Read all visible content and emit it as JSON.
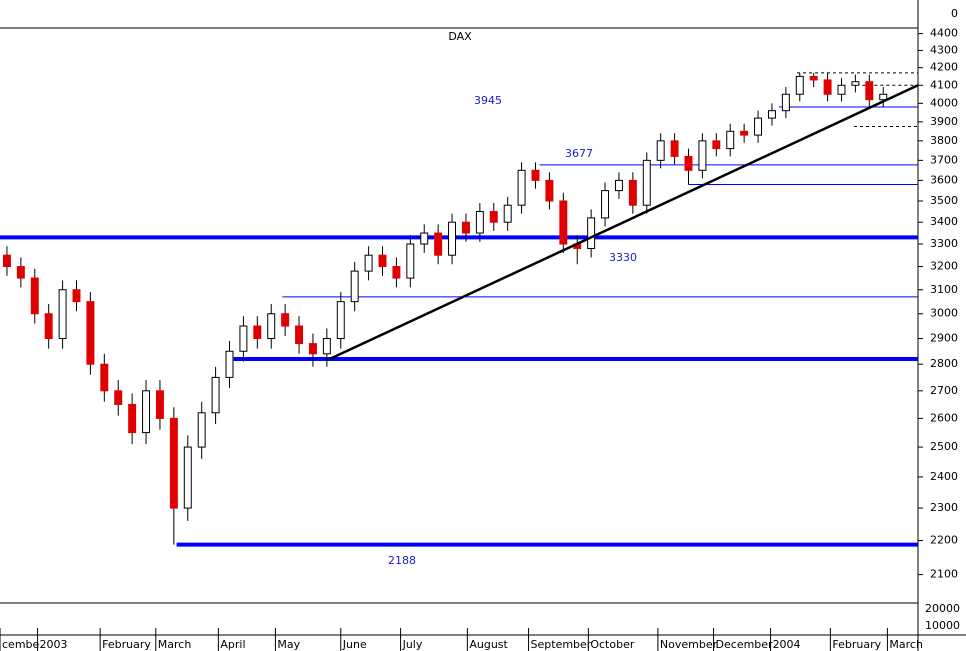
{
  "chart_data": {
    "type": "candlestick",
    "title": "DAX",
    "log_scale": true,
    "ylim": [
      2020,
      4434
    ],
    "yticks": [
      2100,
      2200,
      2300,
      2400,
      2500,
      2600,
      2700,
      2800,
      2900,
      3000,
      3100,
      3200,
      3300,
      3400,
      3500,
      3600,
      3700,
      3800,
      3900,
      4000,
      4100,
      4200,
      4300,
      4400
    ],
    "xlim": [
      -0.5,
      65.5
    ],
    "xticks": [
      {
        "value": -0.5,
        "label": "cembe"
      },
      {
        "value": 2.2,
        "label": "2003"
      },
      {
        "value": 6.7,
        "label": "February"
      },
      {
        "value": 10.7,
        "label": "March"
      },
      {
        "value": 15.2,
        "label": "April"
      },
      {
        "value": 19.3,
        "label": "May"
      },
      {
        "value": 24,
        "label": "June"
      },
      {
        "value": 28.3,
        "label": "July"
      },
      {
        "value": 33.1,
        "label": "August"
      },
      {
        "value": 37.5,
        "label": "September"
      },
      {
        "value": 41.8,
        "label": "October"
      },
      {
        "value": 46.8,
        "label": "November"
      },
      {
        "value": 50.8,
        "label": "December"
      },
      {
        "value": 54.9,
        "label": "2004"
      },
      {
        "value": 59.2,
        "label": "February"
      },
      {
        "value": 63.3,
        "label": "March"
      }
    ],
    "up_color": "#ffffff",
    "down_color": "#e00000",
    "open": [
      3250,
      3200,
      3150,
      3000,
      2900,
      3100,
      3050,
      2800,
      2700,
      2650,
      2550,
      2700,
      2600,
      2300,
      2500,
      2620,
      2750,
      2850,
      2950,
      2900,
      3000,
      2950,
      2880,
      2840,
      2900,
      3050,
      3180,
      3250,
      3200,
      3150,
      3300,
      3350,
      3250,
      3400,
      3350,
      3450,
      3400,
      3480,
      3650,
      3600,
      3500,
      3300,
      3280,
      3420,
      3550,
      3600,
      3480,
      3700,
      3800,
      3720,
      3650,
      3800,
      3760,
      3850,
      3830,
      3920,
      3960,
      4050,
      4150,
      4130,
      4050,
      4100,
      4120,
      4020
    ],
    "high": [
      3290,
      3240,
      3190,
      3040,
      3140,
      3140,
      3090,
      2840,
      2740,
      2690,
      2740,
      2740,
      2640,
      2540,
      2660,
      2790,
      2890,
      2990,
      2990,
      3040,
      3040,
      2990,
      2920,
      2940,
      3090,
      3220,
      3290,
      3290,
      3240,
      3340,
      3390,
      3390,
      3440,
      3440,
      3490,
      3490,
      3520,
      3690,
      3690,
      3640,
      3540,
      3340,
      3460,
      3590,
      3640,
      3640,
      3740,
      3840,
      3840,
      3760,
      3840,
      3840,
      3890,
      3890,
      3960,
      4000,
      4090,
      4170,
      4170,
      4170,
      4140,
      4160,
      4160,
      4090
    ],
    "low": [
      3160,
      3110,
      2960,
      2860,
      2860,
      3010,
      2760,
      2660,
      2610,
      2510,
      2510,
      2560,
      2188,
      2260,
      2460,
      2580,
      2710,
      2810,
      2860,
      2860,
      2910,
      2840,
      2790,
      2790,
      2860,
      3010,
      3140,
      3160,
      3110,
      3110,
      3260,
      3210,
      3210,
      3310,
      3310,
      3360,
      3360,
      3440,
      3560,
      3460,
      3260,
      3210,
      3240,
      3380,
      3510,
      3440,
      3440,
      3660,
      3680,
      3580,
      3610,
      3720,
      3720,
      3790,
      3790,
      3880,
      3920,
      4010,
      4090,
      4010,
      4010,
      4060,
      3980,
      3980
    ],
    "close": [
      3200,
      3150,
      3000,
      2900,
      3100,
      3050,
      2800,
      2700,
      2650,
      2550,
      2700,
      2600,
      2300,
      2500,
      2620,
      2750,
      2850,
      2950,
      2900,
      3000,
      2950,
      2880,
      2840,
      2900,
      3050,
      3180,
      3250,
      3200,
      3150,
      3300,
      3350,
      3250,
      3400,
      3350,
      3450,
      3400,
      3480,
      3650,
      3600,
      3500,
      3300,
      3280,
      3420,
      3550,
      3600,
      3480,
      3700,
      3800,
      3720,
      3650,
      3800,
      3760,
      3850,
      3830,
      3920,
      3960,
      4050,
      4150,
      4130,
      4050,
      4100,
      4120,
      4020,
      4050
    ],
    "levels": [
      {
        "value": 3330,
        "start": -0.5,
        "style": "thick",
        "color": "#0000ff"
      },
      {
        "value": 2820,
        "start": 16.3,
        "style": "thick",
        "color": "#0000ff"
      },
      {
        "value": 2188,
        "start": 12.2,
        "style": "thick",
        "color": "#0000ff"
      },
      {
        "value": 3677,
        "start": 38.3,
        "style": "thin",
        "color": "#0000ff"
      },
      {
        "value": 3580,
        "start": 49,
        "style": "thin",
        "color": "#0000ff"
      },
      {
        "value": 3070,
        "start": 19.8,
        "style": "thin",
        "color": "#0000ff"
      },
      {
        "value": 3980,
        "start": 55.5,
        "style": "thin",
        "color": "#0000ff"
      },
      {
        "value": 4170,
        "start": 56.8,
        "style": "dashed",
        "color": "#000000"
      },
      {
        "value": 3875,
        "start": 60.9,
        "style": "dashed",
        "color": "#000000"
      },
      {
        "value": 4100,
        "start": 61.5,
        "style": "dashed",
        "color": "#000000"
      }
    ],
    "trendline": {
      "x": [
        23.2,
        65.5
      ],
      "y": [
        2820,
        4100
      ],
      "color": "#000000"
    },
    "annotations": [
      3945,
      3677,
      3330,
      2188
    ],
    "top_panel_ticks": [
      0
    ],
    "bottom_panel_ticks": [
      20000,
      10000
    ]
  }
}
